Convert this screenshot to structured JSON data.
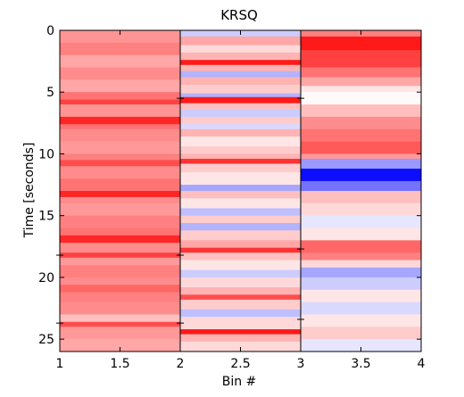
{
  "chart_data": {
    "type": "heatmap",
    "title": "KRSQ",
    "xlabel": "Bin #",
    "ylabel": "Time [seconds]",
    "xlim": [
      1,
      4
    ],
    "ylim": [
      26,
      0
    ],
    "y_direction": "down",
    "x_ticks": [
      "1",
      "1.5",
      "2",
      "2.5",
      "3",
      "3.5",
      "4"
    ],
    "y_ticks": [
      "0",
      "5",
      "10",
      "15",
      "20",
      "25"
    ],
    "colormap": {
      "negative": "#0000ff",
      "zero": "#ffffff",
      "positive": "#ff0000"
    },
    "columns": [
      {
        "bin_range": [
          1,
          2
        ],
        "bands": [
          [
            0,
            1,
            0.42
          ],
          [
            1,
            2,
            0.5
          ],
          [
            2,
            3,
            0.35
          ],
          [
            3,
            4,
            0.45
          ],
          [
            4,
            5,
            0.35
          ],
          [
            5,
            5.6,
            0.55
          ],
          [
            5.6,
            6,
            0.75
          ],
          [
            6,
            7,
            0.42
          ],
          [
            7,
            7.6,
            0.85
          ],
          [
            7.6,
            8,
            0.55
          ],
          [
            8,
            9,
            0.45
          ],
          [
            9,
            10,
            0.4
          ],
          [
            10,
            10.5,
            0.5
          ],
          [
            10.5,
            11,
            0.7
          ],
          [
            11,
            12,
            0.45
          ],
          [
            12,
            13,
            0.55
          ],
          [
            13,
            13.5,
            0.85
          ],
          [
            13.5,
            14,
            0.45
          ],
          [
            14,
            15,
            0.4
          ],
          [
            15,
            16,
            0.5
          ],
          [
            16,
            16.6,
            0.55
          ],
          [
            16.6,
            17.2,
            0.85
          ],
          [
            17.2,
            18,
            0.45
          ],
          [
            18,
            18.4,
            0.75
          ],
          [
            18.4,
            19,
            0.4
          ],
          [
            19,
            20,
            0.5
          ],
          [
            20,
            20.6,
            0.45
          ],
          [
            20.6,
            21.2,
            0.6
          ],
          [
            21.2,
            22,
            0.5
          ],
          [
            22,
            23,
            0.45
          ],
          [
            23,
            23.6,
            0.25
          ],
          [
            23.6,
            24,
            0.7
          ],
          [
            24,
            25,
            0.4
          ],
          [
            25,
            26,
            0.35
          ]
        ]
      },
      {
        "bin_range": [
          2,
          3
        ],
        "bands": [
          [
            0,
            0.5,
            -0.2
          ],
          [
            0.5,
            1.2,
            0.35
          ],
          [
            1.2,
            1.8,
            0.15
          ],
          [
            1.8,
            2.4,
            0.3
          ],
          [
            2.4,
            2.8,
            0.9
          ],
          [
            2.8,
            3.3,
            0.3
          ],
          [
            3.3,
            3.8,
            -0.3
          ],
          [
            3.8,
            4.4,
            0.3
          ],
          [
            4.4,
            5.1,
            0.2
          ],
          [
            5.1,
            5.4,
            -0.3
          ],
          [
            5.4,
            5.9,
            0.9
          ],
          [
            5.9,
            6.4,
            0.25
          ],
          [
            6.4,
            7,
            -0.2
          ],
          [
            7,
            7.6,
            0.2
          ],
          [
            7.6,
            8,
            -0.15
          ],
          [
            8,
            8.6,
            0.3
          ],
          [
            8.6,
            9.4,
            0.1
          ],
          [
            9.4,
            10,
            0.2
          ],
          [
            10,
            10.4,
            0.3
          ],
          [
            10.4,
            10.8,
            0.8
          ],
          [
            10.8,
            11.5,
            0.2
          ],
          [
            11.5,
            12.5,
            0.1
          ],
          [
            12.5,
            13,
            -0.35
          ],
          [
            13,
            13.6,
            0.25
          ],
          [
            13.6,
            14.4,
            0.1
          ],
          [
            14.4,
            15,
            -0.25
          ],
          [
            15,
            15.6,
            0.2
          ],
          [
            15.6,
            16.2,
            -0.3
          ],
          [
            16.2,
            17,
            0.2
          ],
          [
            17,
            17.6,
            0.35
          ],
          [
            17.6,
            18,
            0.8
          ],
          [
            18,
            18.6,
            0.25
          ],
          [
            18.6,
            19.4,
            0.1
          ],
          [
            19.4,
            20,
            -0.2
          ],
          [
            20,
            20.8,
            0.15
          ],
          [
            20.8,
            21.4,
            0.3
          ],
          [
            21.4,
            21.8,
            0.7
          ],
          [
            21.8,
            22.6,
            0.2
          ],
          [
            22.6,
            23.2,
            -0.25
          ],
          [
            23.2,
            24.2,
            0.15
          ],
          [
            24.2,
            24.6,
            0.9
          ],
          [
            24.6,
            25.2,
            0.3
          ],
          [
            25.2,
            26,
            0.15
          ]
        ]
      },
      {
        "bin_range": [
          3,
          4
        ],
        "bands": [
          [
            0,
            0.5,
            0.5
          ],
          [
            0.5,
            1.6,
            0.9
          ],
          [
            1.6,
            3,
            0.75
          ],
          [
            3,
            3.8,
            0.55
          ],
          [
            3.8,
            4.5,
            0.35
          ],
          [
            4.5,
            5,
            0.1
          ],
          [
            5,
            6,
            0.02
          ],
          [
            6,
            7,
            0.25
          ],
          [
            7,
            8,
            0.45
          ],
          [
            8,
            9,
            0.55
          ],
          [
            9,
            10,
            0.65
          ],
          [
            10,
            10.4,
            0.4
          ],
          [
            10.4,
            11.2,
            -0.4
          ],
          [
            11.2,
            12.2,
            -0.95
          ],
          [
            12.2,
            13,
            -0.55
          ],
          [
            13,
            14,
            0.25
          ],
          [
            14,
            15,
            0.15
          ],
          [
            15,
            16,
            -0.1
          ],
          [
            16,
            17,
            0.1
          ],
          [
            17,
            18,
            0.6
          ],
          [
            18,
            18.6,
            0.5
          ],
          [
            18.6,
            19.2,
            0.15
          ],
          [
            19.2,
            20,
            -0.35
          ],
          [
            20,
            21,
            -0.2
          ],
          [
            21,
            22,
            0.1
          ],
          [
            22,
            23,
            -0.15
          ],
          [
            23,
            24,
            0.1
          ],
          [
            24,
            25,
            0.2
          ],
          [
            25,
            26,
            -0.1
          ]
        ]
      }
    ],
    "markers": [
      {
        "bin": 2,
        "time": 5.5
      },
      {
        "bin": 3,
        "time": 5.5
      },
      {
        "bin": 2,
        "time": 18.2
      },
      {
        "bin": 3,
        "time": 17.7
      },
      {
        "bin": 1,
        "time": 18.2
      },
      {
        "bin": 2,
        "time": 23.7
      },
      {
        "bin": 3,
        "time": 23.4
      },
      {
        "bin": 1,
        "time": 23.7
      }
    ]
  }
}
